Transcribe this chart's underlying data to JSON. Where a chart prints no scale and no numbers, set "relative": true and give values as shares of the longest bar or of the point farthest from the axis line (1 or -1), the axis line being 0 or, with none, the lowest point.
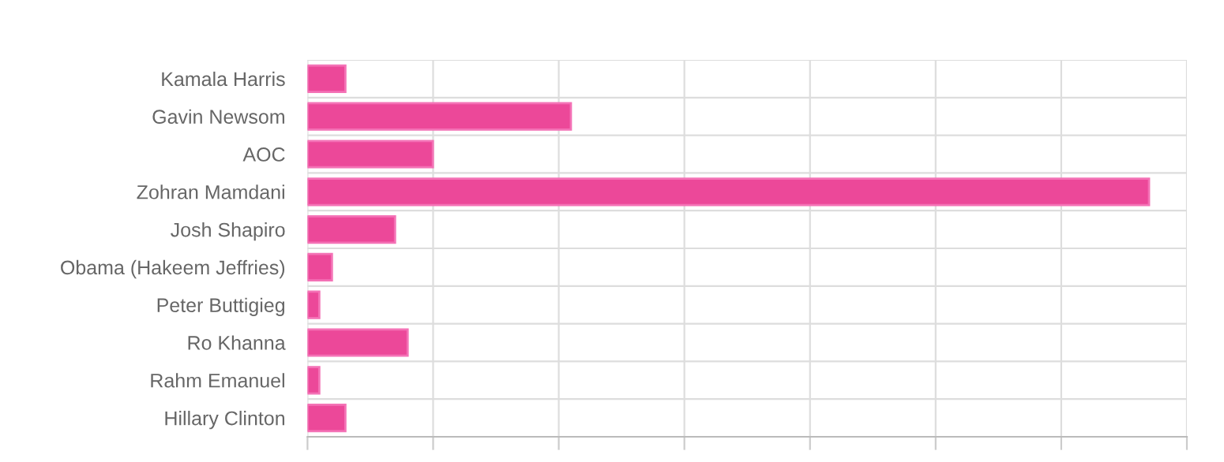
{
  "chart_data": {
    "type": "bar",
    "orientation": "horizontal",
    "relative": true,
    "grid": true,
    "color": "#ec4899",
    "categories": [
      "Kamala Harris",
      "Gavin Newsom",
      "AOC",
      "Zohran Mamdani",
      "Josh Shapiro",
      "Obama (Hakeem Jeffries)",
      "Peter Buttigieg",
      "Ro Khanna",
      "Rahm Emanuel",
      "Hillary Clinton"
    ],
    "values": [
      0.045,
      0.313,
      0.149,
      1,
      0.104,
      0.029,
      0.014,
      0.119,
      0.014,
      0.045
    ]
  }
}
